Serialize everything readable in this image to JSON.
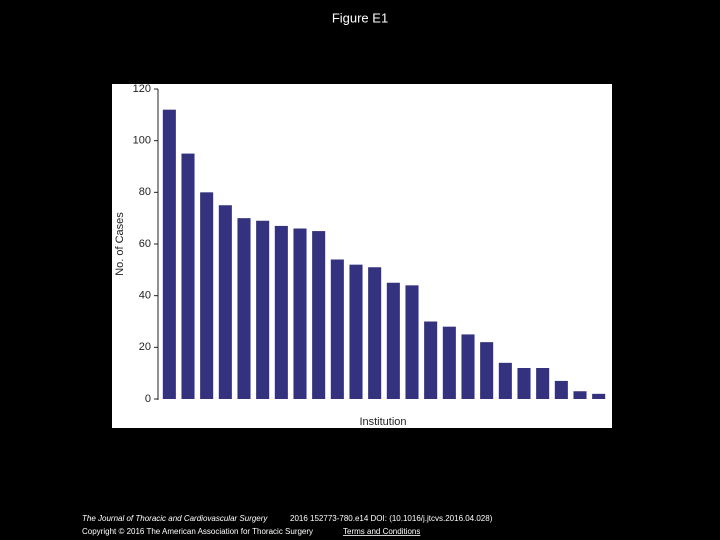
{
  "figure_title": "Figure E1",
  "chart_data": {
    "type": "bar",
    "categories": [
      null,
      null,
      null,
      null,
      null,
      null,
      null,
      null,
      null,
      null,
      null,
      null,
      null,
      null,
      null,
      null,
      null,
      null,
      null,
      null,
      null,
      null,
      null,
      null
    ],
    "values": [
      112,
      95,
      80,
      75,
      70,
      69,
      67,
      66,
      65,
      54,
      52,
      51,
      45,
      44,
      30,
      28,
      25,
      22,
      14,
      12,
      12,
      7,
      3,
      2
    ],
    "color": "#34317f",
    "ylim": [
      0,
      120
    ],
    "yticks": [
      0,
      20,
      40,
      60,
      80,
      100,
      120
    ],
    "ylabel": "No. of Cases",
    "xlabel": "Institution",
    "grid": false
  },
  "footer": {
    "journal": "The Journal of Thoracic and Cardiovascular Surgery",
    "citation": "2016 152773-780.e14 DOI: (10.1016/j.jtcvs.2016.04.028)",
    "copyright": "Copyright © 2016 The American Association for Thoracic Surgery",
    "link": "Terms and Conditions"
  }
}
